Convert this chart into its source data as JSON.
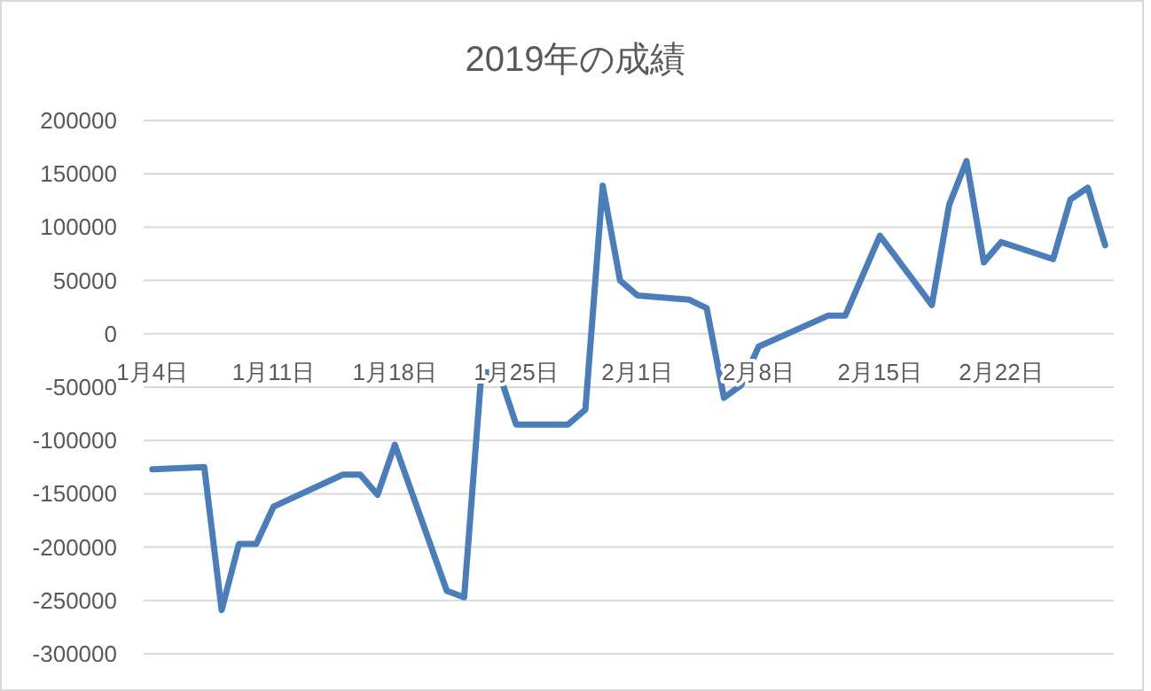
{
  "chart_data": {
    "type": "line",
    "title": "2019年の成績",
    "x": [
      "2019-01-04",
      "2019-01-07",
      "2019-01-08",
      "2019-01-09",
      "2019-01-10",
      "2019-01-11",
      "2019-01-15",
      "2019-01-16",
      "2019-01-17",
      "2019-01-18",
      "2019-01-21",
      "2019-01-22",
      "2019-01-23",
      "2019-01-24",
      "2019-01-25",
      "2019-01-28",
      "2019-01-29",
      "2019-01-30",
      "2019-01-31",
      "2019-02-01",
      "2019-02-04",
      "2019-02-05",
      "2019-02-06",
      "2019-02-07",
      "2019-02-08",
      "2019-02-12",
      "2019-02-13",
      "2019-02-15",
      "2019-02-18",
      "2019-02-19",
      "2019-02-20",
      "2019-02-21",
      "2019-02-22",
      "2019-02-25",
      "2019-02-26",
      "2019-02-27",
      "2019-02-28"
    ],
    "series": [
      {
        "color": "#4a7ebb",
        "values": [
          -127000,
          -125000,
          -259000,
          -197000,
          -197000,
          -162000,
          -132000,
          -132000,
          -151000,
          -104000,
          -241000,
          -247000,
          -36000,
          -36000,
          -85000,
          -85000,
          -71000,
          139000,
          50000,
          36000,
          32000,
          24000,
          -60000,
          -48000,
          -12000,
          17000,
          17000,
          92000,
          27000,
          121000,
          162000,
          67000,
          86000,
          70000,
          126000,
          137000,
          83000
        ]
      }
    ],
    "xlim": [
      "2019-01-03T12:00",
      "2019-02-28T12:00"
    ],
    "xticks": [
      {
        "value": "2019-01-04",
        "label": "1月4日"
      },
      {
        "value": "2019-01-11",
        "label": "1月11日"
      },
      {
        "value": "2019-01-18",
        "label": "1月18日"
      },
      {
        "value": "2019-01-25",
        "label": "1月25日"
      },
      {
        "value": "2019-02-01",
        "label": "2月1日"
      },
      {
        "value": "2019-02-08",
        "label": "2月8日"
      },
      {
        "value": "2019-02-15",
        "label": "2月15日"
      },
      {
        "value": "2019-02-22",
        "label": "2月22日"
      }
    ],
    "ylim": [
      -300000,
      200000
    ],
    "yticks": [
      -300000,
      -250000,
      -200000,
      -150000,
      -100000,
      -50000,
      0,
      50000,
      100000,
      150000,
      200000
    ],
    "grid": "y"
  }
}
